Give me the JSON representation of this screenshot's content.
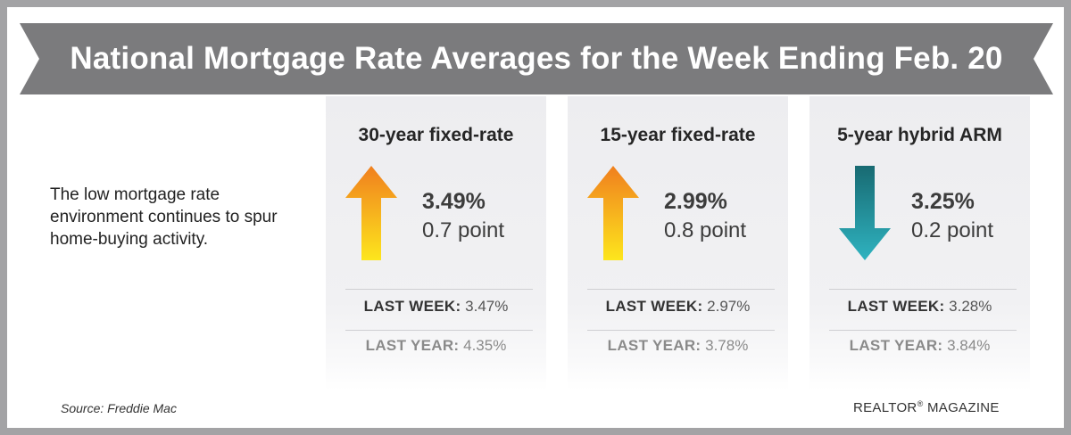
{
  "header": {
    "title": "National Mortgage Rate Averages for the Week Ending Feb. 20"
  },
  "intro_text": "The low mortgage rate environment continues to spur home-buying activity.",
  "cards": [
    {
      "title": "30-year fixed-rate",
      "direction": "up",
      "rate": "3.49%",
      "change": "0.7 point",
      "last_week_label": "LAST WEEK:",
      "last_week_value": "3.47%",
      "last_year_label": "LAST YEAR:",
      "last_year_value": "4.35%",
      "arrow_colors": [
        "#f07f1e",
        "#fde61d"
      ]
    },
    {
      "title": "15-year fixed-rate",
      "direction": "up",
      "rate": "2.99%",
      "change": "0.8 point",
      "last_week_label": "LAST WEEK:",
      "last_week_value": "2.97%",
      "last_year_label": "LAST YEAR:",
      "last_year_value": "3.78%",
      "arrow_colors": [
        "#f07f1e",
        "#fde61d"
      ]
    },
    {
      "title": "5-year hybrid ARM",
      "direction": "down",
      "rate": "3.25%",
      "change": "0.2 point",
      "last_week_label": "LAST WEEK:",
      "last_week_value": "3.28%",
      "last_year_label": "LAST YEAR:",
      "last_year_value": "3.84%",
      "arrow_colors": [
        "#186a72",
        "#2fb3c0"
      ]
    }
  ],
  "footer": {
    "source": "Source: Freddie Mac",
    "brand_name": "REALTOR",
    "brand_mark": "®",
    "brand_suffix": " MAGAZINE"
  },
  "colors": {
    "banner": "#7b7b7d",
    "frame": "#a3a3a5",
    "card_bg": "#ededf0"
  }
}
